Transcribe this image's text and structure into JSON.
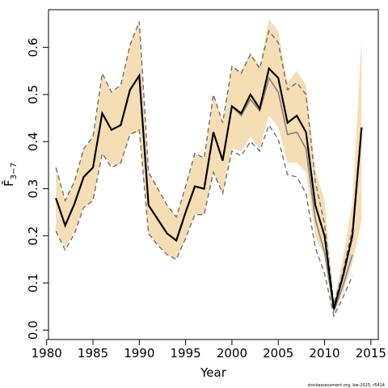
{
  "chart_data": {
    "type": "line",
    "xlabel": "Year",
    "ylabel": "F̄",
    "ylabel_sub": "3−7",
    "credit": "stockassessment.org, bw-2015, r5414",
    "xlim": [
      1980.2,
      2015.8
    ],
    "ylim": [
      -0.02,
      0.68
    ],
    "xticks": [
      1980,
      1985,
      1990,
      1995,
      2000,
      2005,
      2010,
      2015
    ],
    "yticks": [
      0.0,
      0.1,
      0.2,
      0.3,
      0.4,
      0.5,
      0.6
    ],
    "ytick_labels": [
      "0.0",
      "0.1",
      "0.2",
      "0.3",
      "0.4",
      "0.5",
      "0.6"
    ],
    "colors": {
      "band": "#f5deb3",
      "current": "#000000",
      "previous": "#808080"
    },
    "current": {
      "x": [
        1981,
        1982,
        1983,
        1984,
        1985,
        1986,
        1987,
        1988,
        1989,
        1990,
        1991,
        1992,
        1993,
        1994,
        1995,
        1996,
        1997,
        1998,
        1999,
        2000,
        2001,
        2002,
        2003,
        2004,
        2005,
        2006,
        2007,
        2008,
        2009,
        2010,
        2011,
        2012,
        2013,
        2014
      ],
      "estimate": [
        0.28,
        0.222,
        0.268,
        0.325,
        0.345,
        0.46,
        0.425,
        0.435,
        0.51,
        0.54,
        0.265,
        0.235,
        0.205,
        0.19,
        0.25,
        0.305,
        0.3,
        0.42,
        0.36,
        0.475,
        0.46,
        0.5,
        0.47,
        0.555,
        0.535,
        0.44,
        0.455,
        0.42,
        0.265,
        0.2,
        0.045,
        0.115,
        0.2,
        0.43
      ],
      "lower": [
        0.21,
        0.175,
        0.21,
        0.26,
        0.275,
        0.375,
        0.35,
        0.35,
        0.415,
        0.42,
        0.205,
        0.18,
        0.16,
        0.15,
        0.195,
        0.245,
        0.245,
        0.335,
        0.29,
        0.385,
        0.38,
        0.41,
        0.385,
        0.455,
        0.43,
        0.355,
        0.355,
        0.335,
        0.2,
        0.155,
        0.035,
        0.08,
        0.14,
        0.235
      ],
      "upper": [
        0.345,
        0.275,
        0.315,
        0.385,
        0.41,
        0.545,
        0.505,
        0.52,
        0.605,
        0.655,
        0.335,
        0.3,
        0.265,
        0.24,
        0.305,
        0.375,
        0.365,
        0.5,
        0.44,
        0.56,
        0.55,
        0.59,
        0.56,
        0.66,
        0.635,
        0.525,
        0.55,
        0.52,
        0.34,
        0.275,
        0.06,
        0.155,
        0.27,
        0.62
      ]
    },
    "previous": {
      "x": [
        1981,
        1982,
        1983,
        1984,
        1985,
        1986,
        1987,
        1988,
        1989,
        1990,
        1991,
        1992,
        1993,
        1994,
        1995,
        1996,
        1997,
        1998,
        1999,
        2000,
        2001,
        2002,
        2003,
        2004,
        2005,
        2006,
        2007,
        2008,
        2009,
        2010,
        2011,
        2012,
        2013
      ],
      "estimate": [
        0.28,
        0.222,
        0.268,
        0.325,
        0.345,
        0.46,
        0.425,
        0.435,
        0.51,
        0.54,
        0.265,
        0.235,
        0.205,
        0.19,
        0.25,
        0.305,
        0.3,
        0.42,
        0.36,
        0.475,
        0.455,
        0.49,
        0.465,
        0.535,
        0.505,
        0.415,
        0.42,
        0.385,
        0.235,
        0.165,
        0.04,
        0.095,
        0.16
      ],
      "lower": [
        0.21,
        0.17,
        0.205,
        0.26,
        0.275,
        0.375,
        0.345,
        0.355,
        0.415,
        0.425,
        0.205,
        0.18,
        0.16,
        0.15,
        0.195,
        0.245,
        0.245,
        0.335,
        0.29,
        0.38,
        0.37,
        0.4,
        0.38,
        0.435,
        0.405,
        0.33,
        0.325,
        0.29,
        0.175,
        0.12,
        0.03,
        0.07,
        0.115
      ],
      "upper": [
        0.345,
        0.275,
        0.315,
        0.385,
        0.41,
        0.545,
        0.505,
        0.52,
        0.605,
        0.655,
        0.335,
        0.3,
        0.265,
        0.24,
        0.305,
        0.375,
        0.365,
        0.5,
        0.44,
        0.56,
        0.545,
        0.585,
        0.555,
        0.635,
        0.61,
        0.51,
        0.525,
        0.5,
        0.315,
        0.225,
        0.055,
        0.125,
        0.215
      ]
    }
  }
}
